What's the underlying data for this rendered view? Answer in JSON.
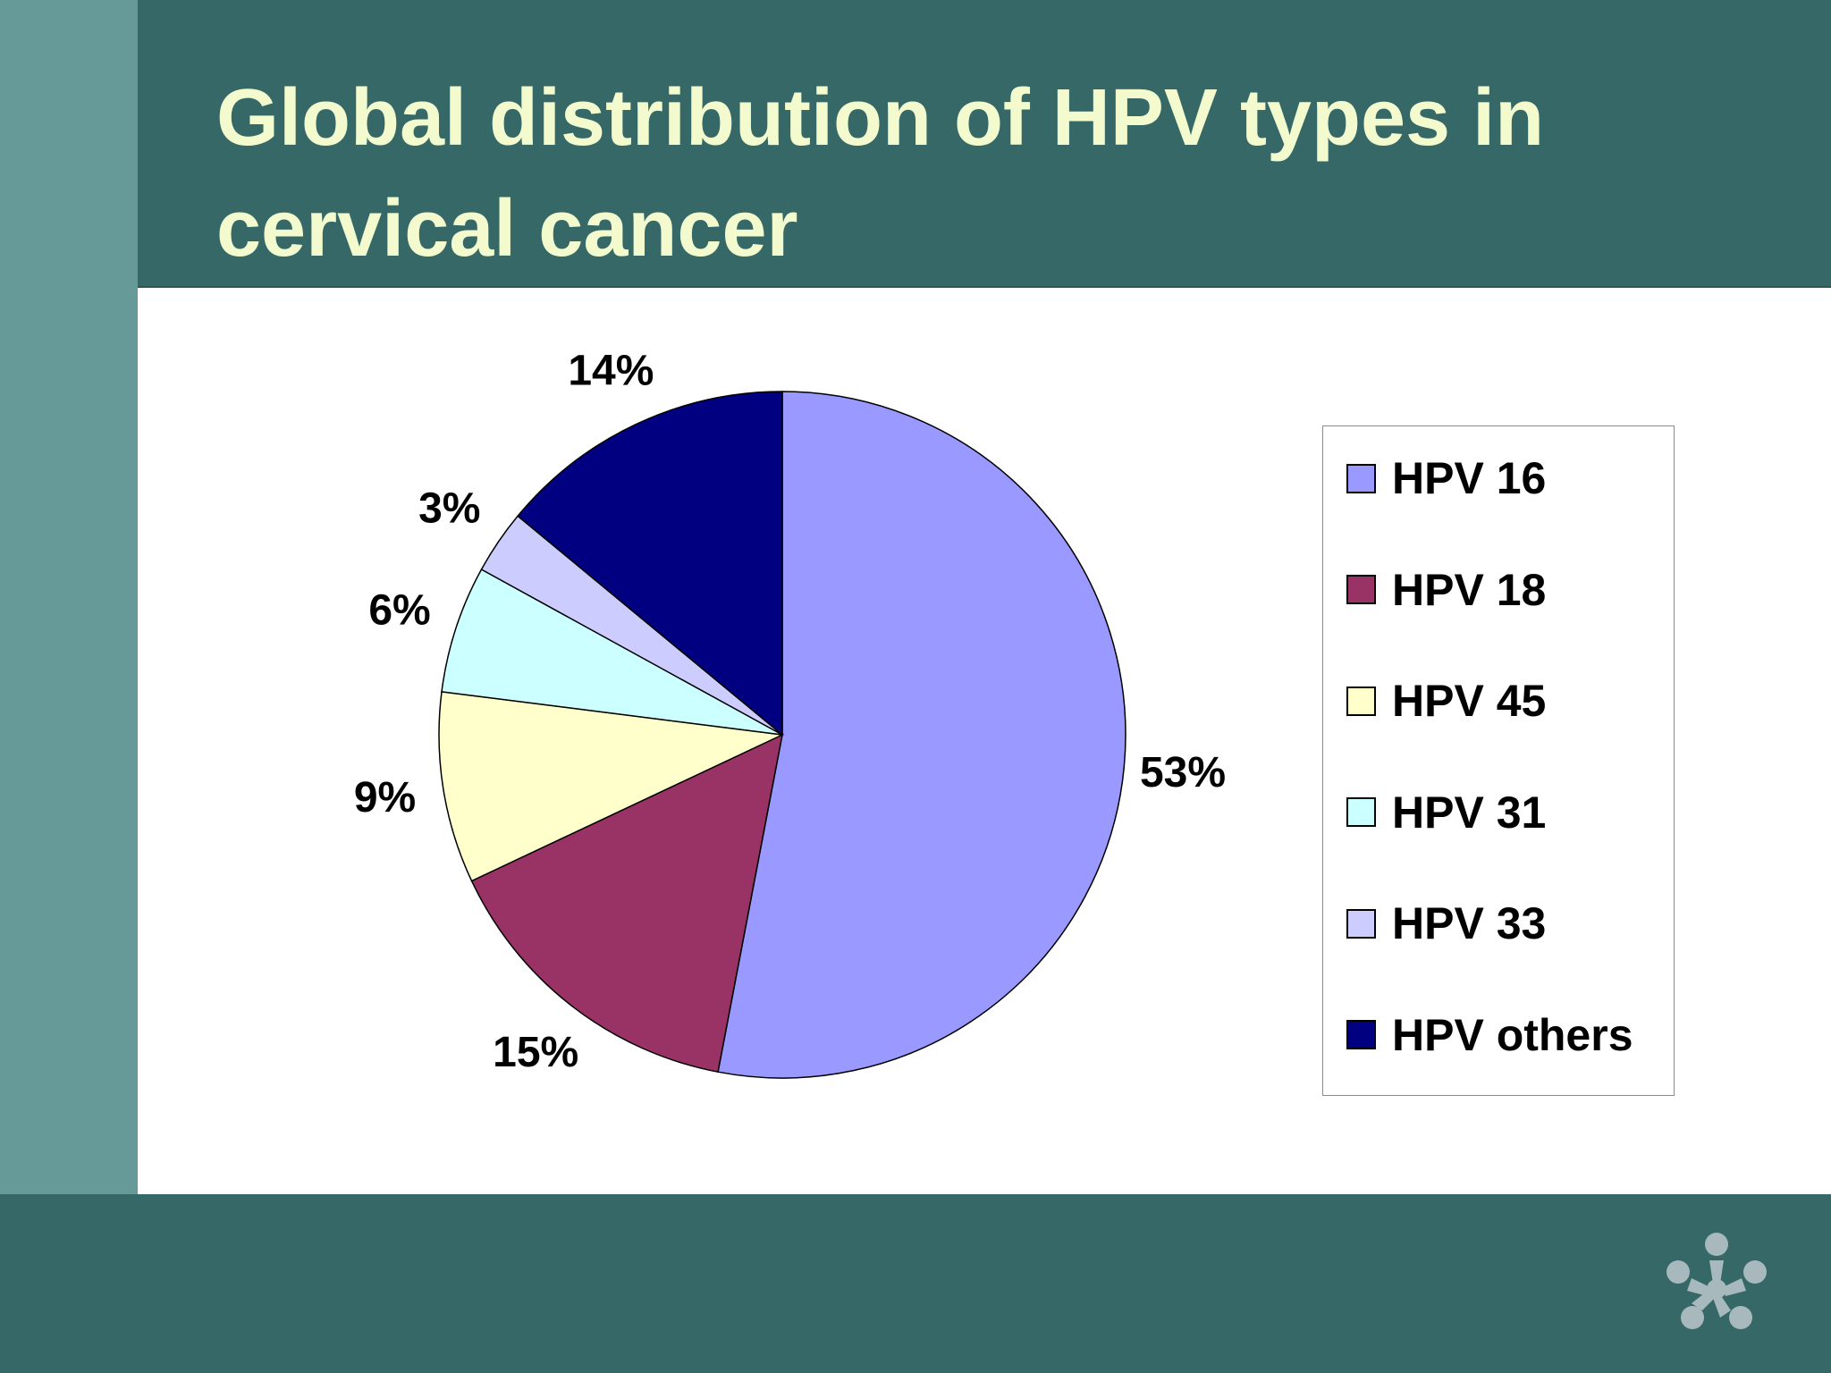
{
  "slide": {
    "title": "Global distribution of HPV types in cervical cancer"
  },
  "colors": {
    "header_bg": "#356866",
    "left_strip": "#659a98",
    "title_text": "#f3fbce",
    "logo": "#a7b9bc"
  },
  "chart_data": {
    "type": "pie",
    "title": "",
    "legend_position": "right",
    "categories": [
      "HPV 16",
      "HPV 18",
      "HPV 45",
      "HPV 31",
      "HPV 33",
      "HPV others"
    ],
    "values": [
      53,
      15,
      9,
      6,
      3,
      14
    ],
    "labels": [
      "53%",
      "15%",
      "9%",
      "6%",
      "3%",
      "14%"
    ],
    "colors": [
      "#9999ff",
      "#993366",
      "#ffffcc",
      "#ccffff",
      "#ccccff",
      "#000080"
    ]
  },
  "icons": {
    "logo": "snowflake-people-logo-icon"
  }
}
